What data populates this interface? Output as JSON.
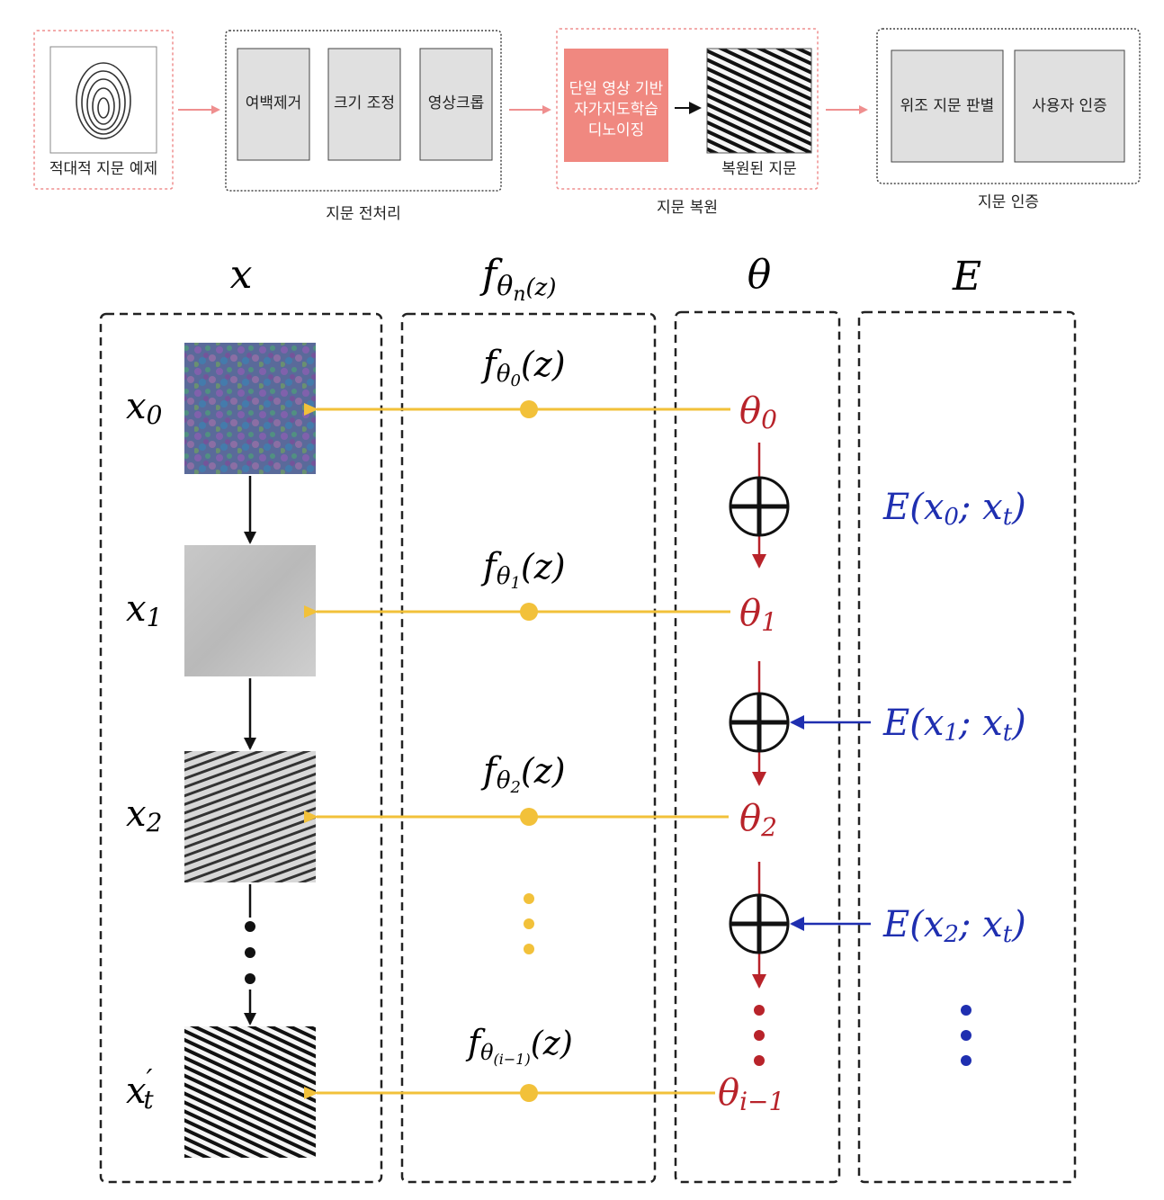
{
  "pipeline": {
    "input": {
      "label": "적대적 지문 예제"
    },
    "preprocess": {
      "caption": "지문 전처리",
      "steps": [
        "여백제거",
        "크기 조정",
        "영상크롭"
      ]
    },
    "restore": {
      "caption": "지문 복원",
      "method_lines": [
        "단일 영상 기반",
        "자가지도학습",
        "디노이징"
      ],
      "output_label": "복원된 지문"
    },
    "auth": {
      "caption": "지문 인증",
      "steps": [
        "위조 지문 판별",
        "사용자 인증"
      ]
    }
  },
  "flow": {
    "headers": {
      "x": "x",
      "f": "f",
      "f_sub": "θ",
      "f_subsub": "n",
      "f_arg": "(z)",
      "theta": "θ",
      "E": "E"
    },
    "x_labels": [
      {
        "base": "x",
        "sub": "0"
      },
      {
        "base": "x",
        "sub": "1"
      },
      {
        "base": "x",
        "sub": "2"
      },
      {
        "base": "x",
        "sub": "t",
        "prime": "′"
      }
    ],
    "f_labels": [
      {
        "base": "f",
        "sub": "θ",
        "subsub": "0",
        "arg": "(z)"
      },
      {
        "base": "f",
        "sub": "θ",
        "subsub": "1",
        "arg": "(z)"
      },
      {
        "base": "f",
        "sub": "θ",
        "subsub": "2",
        "arg": "(z)"
      },
      {
        "base": "f",
        "sub": "θ",
        "subsub": "(i−1)",
        "arg": "(z)"
      }
    ],
    "theta_labels": [
      {
        "base": "θ",
        "sub": "0"
      },
      {
        "base": "θ",
        "sub": "1"
      },
      {
        "base": "θ",
        "sub": "2"
      },
      {
        "base": "θ",
        "sub": "i−1"
      }
    ],
    "E_labels": [
      {
        "pre": "E(",
        "x": "x",
        "xsub": "0",
        "mid": "; ",
        "t": "x",
        "tsub": "t",
        "post": ")"
      },
      {
        "pre": "E(",
        "x": "x",
        "xsub": "1",
        "mid": "; ",
        "t": "x",
        "tsub": "t",
        "post": ")"
      },
      {
        "pre": "E(",
        "x": "x",
        "xsub": "2",
        "mid": "; ",
        "t": "x",
        "tsub": "t",
        "post": ")"
      }
    ]
  },
  "colors": {
    "yellow": "#f2c13a",
    "red": "#b8232a",
    "blue": "#1f2fb0",
    "pink_border": "#ef8f8f",
    "pink_fill": "#f08880",
    "gray_box": "#e0e0e0"
  }
}
